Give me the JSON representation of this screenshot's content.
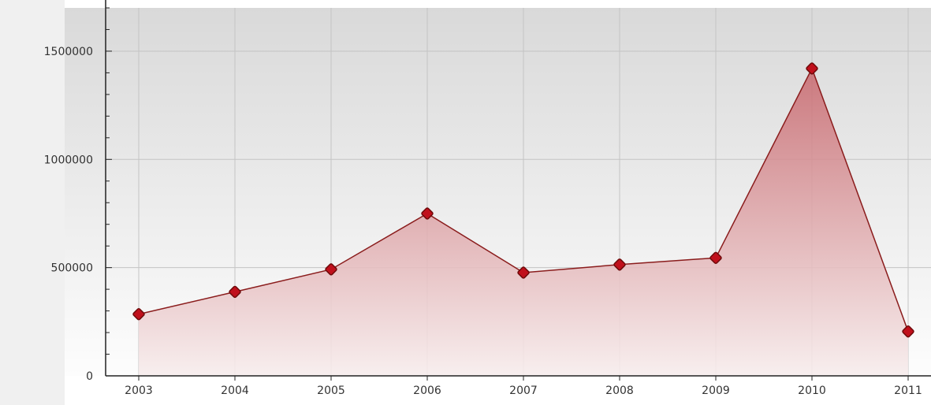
{
  "chart_data": {
    "type": "area",
    "title": "",
    "xlabel": "",
    "ylabel": "",
    "x": [
      "2003",
      "2004",
      "2005",
      "2006",
      "2007",
      "2008",
      "2009",
      "2010",
      "2011"
    ],
    "series": [
      {
        "values": [
          285000,
          388000,
          492000,
          750000,
          477000,
          514000,
          545000,
          1420000,
          205000
        ]
      }
    ],
    "y_ticks": [
      "0",
      "500000",
      "1000000",
      "1500000"
    ],
    "ylim": [
      0,
      1700000
    ],
    "grid": true,
    "legend": "none",
    "colors": {
      "line": "#8a1c1c",
      "marker_fill": "#c0101c",
      "marker_stroke": "#6e0a0a",
      "area_top": "#c8686e",
      "area_bottom": "#f7eded",
      "plot_bg_top": "#d9d9d9",
      "plot_bg_bottom": "#fdfdfd",
      "left_panel": "#f0f0f0",
      "grid": "#c4c4c4",
      "axis": "#222222"
    }
  }
}
